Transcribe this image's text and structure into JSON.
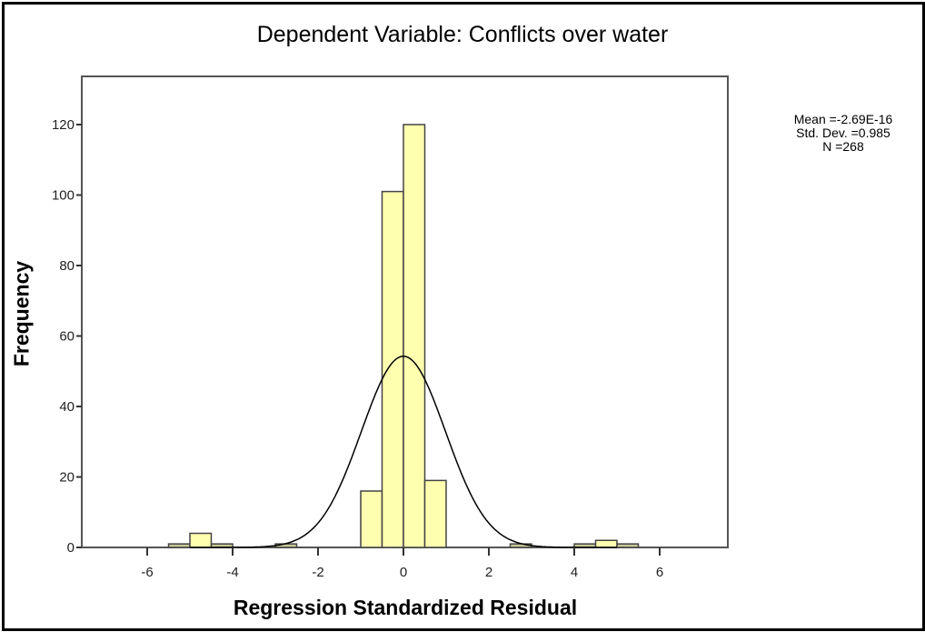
{
  "chart_data": {
    "type": "bar",
    "title": "Dependent Variable: Conflicts over water",
    "xlabel": "Regression Standardized Residual",
    "ylabel": "Frequency",
    "xlim": [
      -7.5,
      7.5
    ],
    "ylim": [
      0,
      135
    ],
    "x_ticks": [
      -6,
      -4,
      -2,
      0,
      2,
      4,
      6
    ],
    "y_ticks": [
      0,
      20,
      40,
      60,
      80,
      100,
      120
    ],
    "bin_width": 0.5,
    "bins": [
      {
        "start": -5.5,
        "end": -5.0,
        "count": 1
      },
      {
        "start": -5.0,
        "end": -4.5,
        "count": 4
      },
      {
        "start": -4.5,
        "end": -4.0,
        "count": 1
      },
      {
        "start": -3.0,
        "end": -2.5,
        "count": 1
      },
      {
        "start": -1.0,
        "end": -0.5,
        "count": 16
      },
      {
        "start": -0.5,
        "end": 0.0,
        "count": 101
      },
      {
        "start": 0.0,
        "end": 0.5,
        "count": 120
      },
      {
        "start": 0.5,
        "end": 1.0,
        "count": 19
      },
      {
        "start": 2.5,
        "end": 3.0,
        "count": 1
      },
      {
        "start": 4.0,
        "end": 4.5,
        "count": 1
      },
      {
        "start": 4.5,
        "end": 5.0,
        "count": 2
      },
      {
        "start": 5.0,
        "end": 5.5,
        "count": 1
      }
    ],
    "normal_curve": {
      "mean": -2.69e-16,
      "std_dev": 0.985,
      "n": 268
    },
    "legend": {
      "mean": "Mean =-2.69E-16",
      "std_dev": "Std. Dev. =0.985",
      "n": "N =268"
    },
    "colors": {
      "bar_fill": "#ffffb0",
      "bar_stroke": "#444444",
      "curve": "#000000"
    },
    "grid": false
  }
}
